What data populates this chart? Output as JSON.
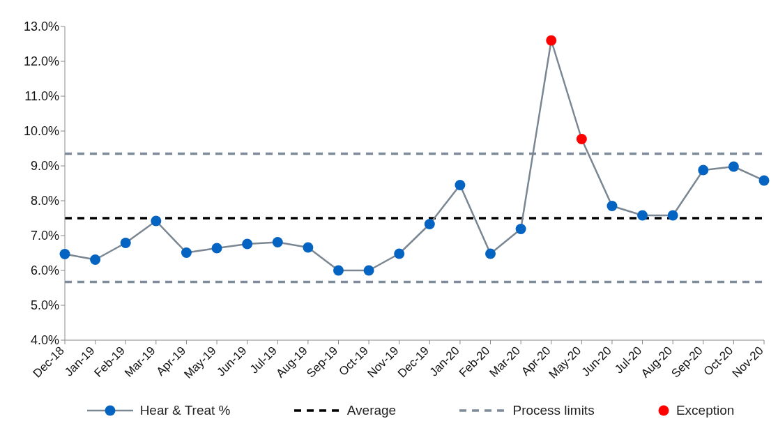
{
  "chart_data": {
    "type": "line",
    "categories": [
      "Dec-18",
      "Jan-19",
      "Feb-19",
      "Mar-19",
      "Apr-19",
      "May-19",
      "Jun-19",
      "Jul-19",
      "Aug-19",
      "Sep-19",
      "Oct-19",
      "Nov-19",
      "Dec-19",
      "Jan-20",
      "Feb-20",
      "Mar-20",
      "Apr-20",
      "May-20",
      "Jun-20",
      "Jul-20",
      "Aug-20",
      "Sep-20",
      "Oct-20",
      "Nov-20"
    ],
    "series": [
      {
        "name": "Hear & Treat %",
        "color": "#0563c1",
        "marker": "circle",
        "values": [
          6.47,
          6.31,
          6.79,
          7.42,
          6.51,
          6.64,
          6.76,
          6.81,
          6.66,
          6.0,
          6.0,
          6.48,
          7.33,
          8.45,
          6.48,
          7.19,
          12.6,
          9.77,
          7.85,
          7.58,
          7.58,
          8.88,
          8.98,
          8.58
        ]
      },
      {
        "name": "Exception",
        "type": "scatter",
        "color": "#ff0000",
        "marker": "circle",
        "values": [
          null,
          null,
          null,
          null,
          null,
          null,
          null,
          null,
          null,
          null,
          null,
          null,
          null,
          null,
          null,
          null,
          12.6,
          9.77,
          null,
          null,
          null,
          null,
          null,
          null
        ]
      }
    ],
    "ref_lines": [
      {
        "axis": "y",
        "value": 7.5,
        "label": "Average",
        "color": "#000000",
        "line_style": "dashed"
      },
      {
        "axis": "y",
        "value": 9.35,
        "label": "Process limits",
        "color": "#7f8c99",
        "line_style": "dashed"
      },
      {
        "axis": "y",
        "value": 5.67,
        "color": "#7f8c99",
        "line_style": "dashed"
      }
    ],
    "ylim": [
      4,
      13
    ],
    "yticks": [
      {
        "value": 4,
        "label": "4.0%"
      },
      {
        "value": 5,
        "label": "5.0%"
      },
      {
        "value": 6,
        "label": "6.0%"
      },
      {
        "value": 7,
        "label": "7.0%"
      },
      {
        "value": 8,
        "label": "8.0%"
      },
      {
        "value": 9,
        "label": "9.0%"
      },
      {
        "value": 10,
        "label": "10.0%"
      },
      {
        "value": 11,
        "label": "11.0%"
      },
      {
        "value": 12,
        "label": "12.0%"
      },
      {
        "value": 13,
        "label": "13.0%"
      }
    ],
    "grid": false,
    "legend": "bottom"
  }
}
